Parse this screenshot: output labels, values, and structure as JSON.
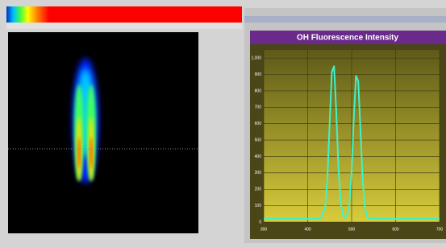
{
  "chart_data": {
    "type": "line",
    "title": "OH Fluorescence Intensity",
    "x": [
      300,
      340,
      380,
      410,
      420,
      430,
      440,
      445,
      450,
      455,
      460,
      465,
      470,
      475,
      480,
      485,
      490,
      495,
      500,
      505,
      510,
      515,
      520,
      525,
      530,
      535,
      540,
      550,
      560,
      580,
      620,
      660,
      700
    ],
    "values": [
      20,
      20,
      20,
      20,
      20,
      22,
      96,
      276,
      602,
      915,
      950,
      675,
      332,
      120,
      42,
      26,
      43,
      114,
      312,
      634,
      892,
      859,
      566,
      260,
      92,
      34,
      23,
      20,
      20,
      20,
      20,
      20,
      20
    ],
    "color": "#3ff2c8",
    "xlim": [
      300,
      700
    ],
    "xticks": [
      300,
      400,
      500,
      600,
      700
    ],
    "ylim": [
      0,
      1050
    ],
    "yticks": [
      0,
      100,
      200,
      300,
      400,
      500,
      600,
      700,
      800,
      900,
      {
        "value": 1000,
        "label": "1,000"
      }
    ],
    "grid": true
  }
}
